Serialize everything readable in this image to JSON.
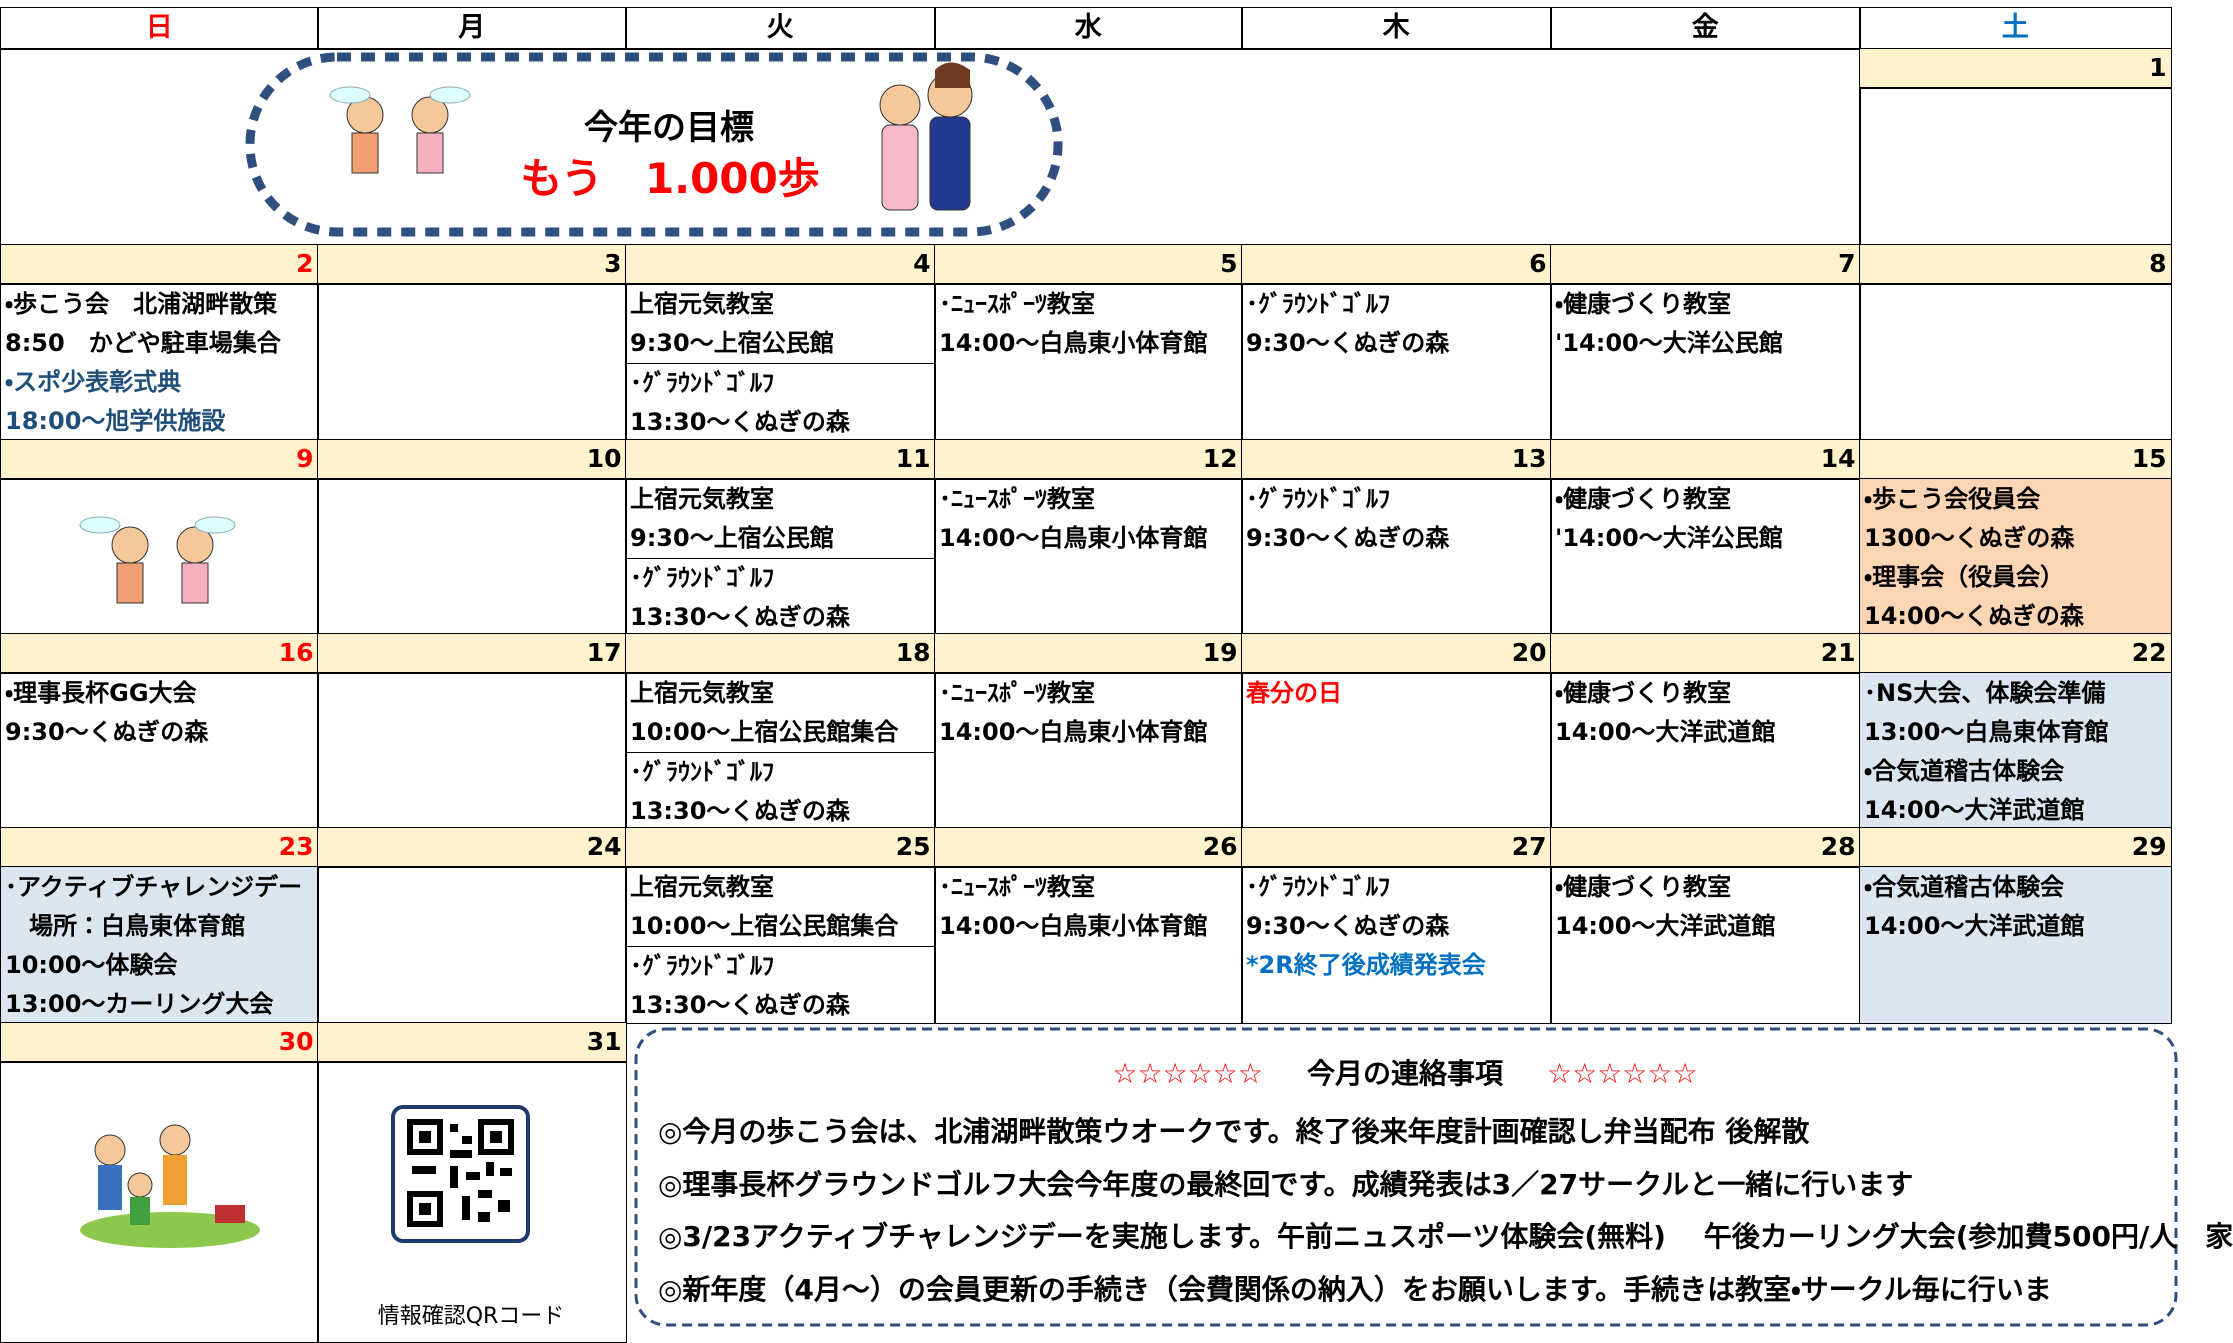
{
  "header": {
    "days": [
      "日",
      "月",
      "火",
      "水",
      "木",
      "金",
      "土"
    ]
  },
  "banner": {
    "heading": "今年の目標",
    "goal": "もう　1.000歩"
  },
  "first_week": {
    "saturday_date": "1"
  },
  "weeks": [
    {
      "days": [
        {
          "date": "2",
          "lines": [
            "・歩こう会　北浦湖畔散策",
            " 8:50　かどや駐車場集合",
            {
              "text": "・スポ少表彰式典",
              "color": "#1f4e79"
            },
            {
              "text": "18:00～旭学供施設",
              "color": "#1f4e79"
            }
          ]
        },
        {
          "date": "3",
          "lines": []
        },
        {
          "date": "4",
          "lines": [
            "上宿元気教室",
            " 9:30～上宿公民館",
            "･ｸﾞﾗｳﾝﾄﾞｺﾞﾙﾌ",
            "13:30～くぬぎの森"
          ]
        },
        {
          "date": "5",
          "lines": [
            "･ﾆｭｰｽﾎﾟｰﾂ教室",
            "14:00～白鳥東小体育館"
          ]
        },
        {
          "date": "6",
          "lines": [
            "･ｸﾞﾗｳﾝﾄﾞｺﾞﾙﾌ",
            "9:30～くぬぎの森"
          ]
        },
        {
          "date": "7",
          "lines": [
            "・健康づくり教室",
            "'14:00～大洋公民館"
          ]
        },
        {
          "date": "8",
          "lines": []
        }
      ]
    },
    {
      "days": [
        {
          "date": "9",
          "lines": []
        },
        {
          "date": "10",
          "lines": []
        },
        {
          "date": "11",
          "lines": [
            "上宿元気教室",
            " 9:30～上宿公民館",
            "･ｸﾞﾗｳﾝﾄﾞｺﾞﾙﾌ",
            "13:30～くぬぎの森"
          ]
        },
        {
          "date": "12",
          "lines": [
            "･ﾆｭｰｽﾎﾟｰﾂ教室",
            "14:00～白鳥東小体育館"
          ]
        },
        {
          "date": "13",
          "lines": [
            "･ｸﾞﾗｳﾝﾄﾞｺﾞﾙﾌ",
            "9:30～くぬぎの森"
          ]
        },
        {
          "date": "14",
          "lines": [
            "・健康づくり教室",
            "'14:00～大洋公民館"
          ]
        },
        {
          "date": "15",
          "bg": "#fcd5b4",
          "lines": [
            "・歩こう会役員会",
            "1300～くぬぎの森",
            "・理事会（役員会）",
            "14:00～くぬぎの森"
          ]
        }
      ]
    },
    {
      "days": [
        {
          "date": "16",
          "lines": [
            "・理事長杯GG大会",
            "9:30～くぬぎの森"
          ]
        },
        {
          "date": "17",
          "lines": []
        },
        {
          "date": "18",
          "lines": [
            "上宿元気教室",
            "10:00～上宿公民館集合",
            "･ｸﾞﾗｳﾝﾄﾞｺﾞﾙﾌ",
            "13:30～くぬぎの森"
          ]
        },
        {
          "date": "19",
          "lines": [
            "･ﾆｭｰｽﾎﾟｰﾂ教室",
            "14:00～白鳥東小体育館"
          ]
        },
        {
          "date": "20",
          "lines": [
            {
              "text": "春分の日",
              "color": "#ff0000"
            }
          ]
        },
        {
          "date": "21",
          "lines": [
            "・健康づくり教室",
            "14:00～大洋武道館"
          ]
        },
        {
          "date": "22",
          "bg": "#dce6f1",
          "lines": [
            "･NS大会、体験会準備",
            "13:00～白鳥東体育館",
            "・合気道稽古体験会",
            "14:00～大洋武道館"
          ]
        }
      ]
    },
    {
      "days": [
        {
          "date": "23",
          "bg": "#dce6f1",
          "lines": [
            "･アクティブチャレンジデー",
            "　場所：白鳥東体育館",
            "10:00～体験会",
            "13:00～カーリング大会"
          ]
        },
        {
          "date": "24",
          "lines": []
        },
        {
          "date": "25",
          "lines": [
            "上宿元気教室",
            "10:00～上宿公民館集合",
            "･ｸﾞﾗｳﾝﾄﾞｺﾞﾙﾌ",
            "13:30～くぬぎの森"
          ]
        },
        {
          "date": "26",
          "lines": [
            "･ﾆｭｰｽﾎﾟｰﾂ教室",
            "14:00～白鳥東小体育館"
          ]
        },
        {
          "date": "27",
          "lines": [
            "･ｸﾞﾗｳﾝﾄﾞｺﾞﾙﾌ",
            "9:30～くぬぎの森",
            {
              "text": "*2R終了後成績発表会",
              "color": "#0070c0"
            }
          ]
        },
        {
          "date": "28",
          "lines": [
            "・健康づくり教室",
            "14:00～大洋武道館"
          ]
        },
        {
          "date": "29",
          "bg": "#dce6f1",
          "lines": [
            "・合気道稽古体験会",
            "14:00～大洋武道館"
          ]
        }
      ]
    }
  ],
  "last_week": {
    "dates": [
      "30",
      "31"
    ],
    "qr_caption": "情報確認QRコード"
  },
  "notice": {
    "stars_left": "☆☆☆☆☆☆",
    "title": "今月の連絡事項",
    "stars_right": "☆☆☆☆☆☆",
    "lines": [
      "◎今月の歩こう会は、北浦湖畔散策ウオークです。終了後来年度計画確認し弁当配布 後解散",
      "◎理事長杯グラウンドゴルフ大会今年度の最終回です。成績発表は3／27サークルと一緒に行います",
      "◎3/23アクティブチャレンジデーを実施します。午前ニュスポーツ体験会(無料)　 午後カーリング大会(参加費500円/人　家",
      "◎新年度（4月～）の会員更新の手続き（会費関係の納入）をお願いします。手続きは教室・サークル毎に行いま"
    ]
  }
}
